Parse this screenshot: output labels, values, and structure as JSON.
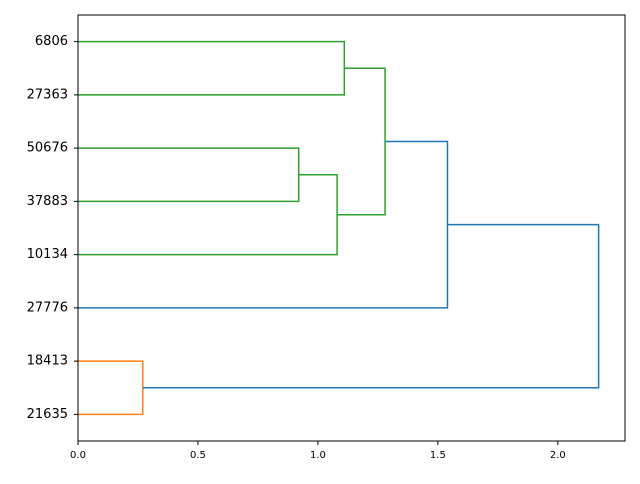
{
  "chart_data": {
    "type": "dendrogram",
    "orientation": "left",
    "categories": [
      "6806",
      "27363",
      "50676",
      "37883",
      "10134",
      "27776",
      "18413",
      "21635"
    ],
    "merges": [
      {
        "children": [
          0,
          1
        ],
        "height": 1.11,
        "color": "#2ca02c"
      },
      {
        "children": [
          2,
          3
        ],
        "height": 0.92,
        "color": "#2ca02c"
      },
      {
        "children": [
          9,
          4
        ],
        "height": 1.08,
        "color": "#2ca02c"
      },
      {
        "children": [
          8,
          10
        ],
        "height": 1.28,
        "color": "#2ca02c"
      },
      {
        "children": [
          11,
          5
        ],
        "height": 1.54,
        "color": "#1f77b4"
      },
      {
        "children": [
          6,
          7
        ],
        "height": 0.27,
        "color": "#ff7f0e"
      },
      {
        "children": [
          12,
          13
        ],
        "height": 2.17,
        "color": "#1f77b4"
      }
    ],
    "xlim": [
      0,
      2.28
    ],
    "xticks": [
      {
        "value": 0,
        "label": "0.0"
      },
      0.5,
      {
        "value": 1,
        "label": "1.0"
      },
      1.5,
      {
        "value": 2,
        "label": "2.0"
      }
    ]
  }
}
